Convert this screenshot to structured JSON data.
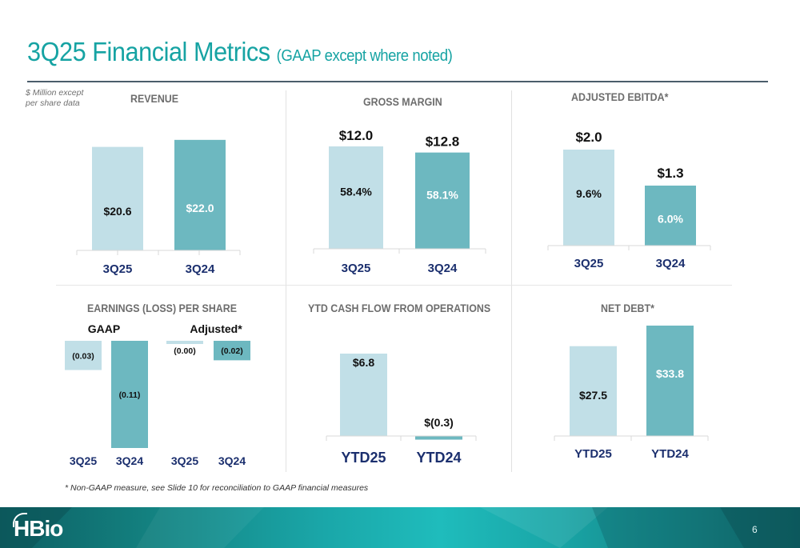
{
  "header": {
    "title": "3Q25 Financial Metrics",
    "subtitle": "(GAAP except where noted)",
    "units_line1": "$ Million except",
    "units_line2": "per share data"
  },
  "colors": {
    "title": "#16a3a3",
    "bar_current": "#c1dfe7",
    "bar_prior": "#6db8c0",
    "category_label": "#1b2f6e",
    "panel_title": "#6d6d6d"
  },
  "footnote": "* Non-GAAP measure, see Slide 10 for reconciliation to GAAP financial measures",
  "footer": {
    "logo": "HBio",
    "page_number": "6"
  },
  "chart_data": [
    {
      "id": "revenue",
      "type": "bar",
      "title": "REVENUE",
      "unit": "$ Million",
      "categories": [
        "3Q25",
        "3Q24"
      ],
      "values": [
        20.6,
        22.0
      ],
      "labels": [
        "$20.6",
        "$22.0"
      ],
      "ylim": [
        0,
        25
      ]
    },
    {
      "id": "gross-margin",
      "type": "bar",
      "title": "GROSS MARGIN",
      "unit": "$ Million",
      "categories": [
        "3Q25",
        "3Q24"
      ],
      "values": [
        12.0,
        12.8
      ],
      "labels": [
        "$12.0",
        "$12.8"
      ],
      "margin_pct": [
        58.4,
        58.1
      ],
      "margin_labels": [
        "58.4%",
        "58.1%"
      ],
      "note": "bar heights reflect margin percentage"
    },
    {
      "id": "adjusted-ebitda",
      "type": "bar",
      "title": "ADJUSTED EBITDA*",
      "unit": "$ Million",
      "categories": [
        "3Q25",
        "3Q24"
      ],
      "values": [
        2.0,
        1.3
      ],
      "labels": [
        "$2.0",
        "$1.3"
      ],
      "margin_pct": [
        9.6,
        6.0
      ],
      "margin_labels": [
        "9.6%",
        "6.0%"
      ]
    },
    {
      "id": "eps",
      "type": "bar",
      "title": "EARNINGS (LOSS) PER SHARE",
      "unit": "$ per share",
      "groups": [
        {
          "name": "GAAP",
          "categories": [
            "3Q25",
            "3Q24"
          ],
          "values": [
            -0.03,
            -0.11
          ],
          "labels": [
            "(0.03)",
            "(0.11)"
          ]
        },
        {
          "name": "Adjusted*",
          "categories": [
            "3Q25",
            "3Q24"
          ],
          "values": [
            -0.0,
            -0.02
          ],
          "labels": [
            "(0.00)",
            "(0.02)"
          ]
        }
      ],
      "ylim": [
        -0.12,
        0
      ]
    },
    {
      "id": "cash-flow",
      "type": "bar",
      "title": "YTD CASH FLOW FROM OPERATIONS",
      "unit": "$ Million",
      "categories": [
        "YTD25",
        "YTD24"
      ],
      "values": [
        6.8,
        -0.3
      ],
      "labels": [
        "$6.8",
        "$(0.3)"
      ]
    },
    {
      "id": "net-debt",
      "type": "bar",
      "title": "NET DEBT*",
      "unit": "$ Million",
      "categories": [
        "YTD25",
        "YTD24"
      ],
      "values": [
        27.5,
        33.8
      ],
      "labels": [
        "$27.5",
        "$33.8"
      ]
    }
  ]
}
